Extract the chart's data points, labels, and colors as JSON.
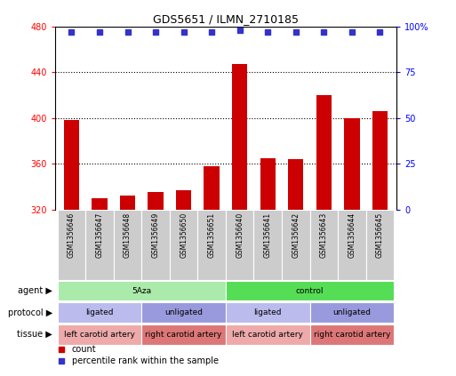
{
  "title": "GDS5651 / ILMN_2710185",
  "samples": [
    "GSM1356646",
    "GSM1356647",
    "GSM1356648",
    "GSM1356649",
    "GSM1356650",
    "GSM1356651",
    "GSM1356640",
    "GSM1356641",
    "GSM1356642",
    "GSM1356643",
    "GSM1356644",
    "GSM1356645"
  ],
  "counts": [
    398,
    330,
    332,
    335,
    337,
    358,
    447,
    365,
    364,
    420,
    400,
    406
  ],
  "percentiles": [
    97,
    97,
    97,
    97,
    97,
    97,
    98,
    97,
    97,
    97,
    97,
    97
  ],
  "ylim_left": [
    320,
    480
  ],
  "ylim_right": [
    0,
    100
  ],
  "yticks_left": [
    320,
    360,
    400,
    440,
    480
  ],
  "yticks_right": [
    0,
    25,
    50,
    75,
    100
  ],
  "bar_color": "#cc0000",
  "dot_color": "#3333cc",
  "agent_labels": [
    {
      "text": "5Aza",
      "start": 0,
      "end": 6,
      "color": "#aaeaaa"
    },
    {
      "text": "control",
      "start": 6,
      "end": 12,
      "color": "#55dd55"
    }
  ],
  "protocol_labels": [
    {
      "text": "ligated",
      "start": 0,
      "end": 3,
      "color": "#bbbbee"
    },
    {
      "text": "unligated",
      "start": 3,
      "end": 6,
      "color": "#9999dd"
    },
    {
      "text": "ligated",
      "start": 6,
      "end": 9,
      "color": "#bbbbee"
    },
    {
      "text": "unligated",
      "start": 9,
      "end": 12,
      "color": "#9999dd"
    }
  ],
  "tissue_labels": [
    {
      "text": "left carotid artery",
      "start": 0,
      "end": 3,
      "color": "#eeaaaa"
    },
    {
      "text": "right carotid artery",
      "start": 3,
      "end": 6,
      "color": "#dd7777"
    },
    {
      "text": "left carotid artery",
      "start": 6,
      "end": 9,
      "color": "#eeaaaa"
    },
    {
      "text": "right carotid artery",
      "start": 9,
      "end": 12,
      "color": "#dd7777"
    }
  ],
  "legend_items": [
    {
      "label": "count",
      "color": "#cc0000"
    },
    {
      "label": "percentile rank within the sample",
      "color": "#3333cc"
    }
  ],
  "background_color": "#ffffff",
  "sample_box_color": "#cccccc",
  "sample_box_edge": "#ffffff"
}
